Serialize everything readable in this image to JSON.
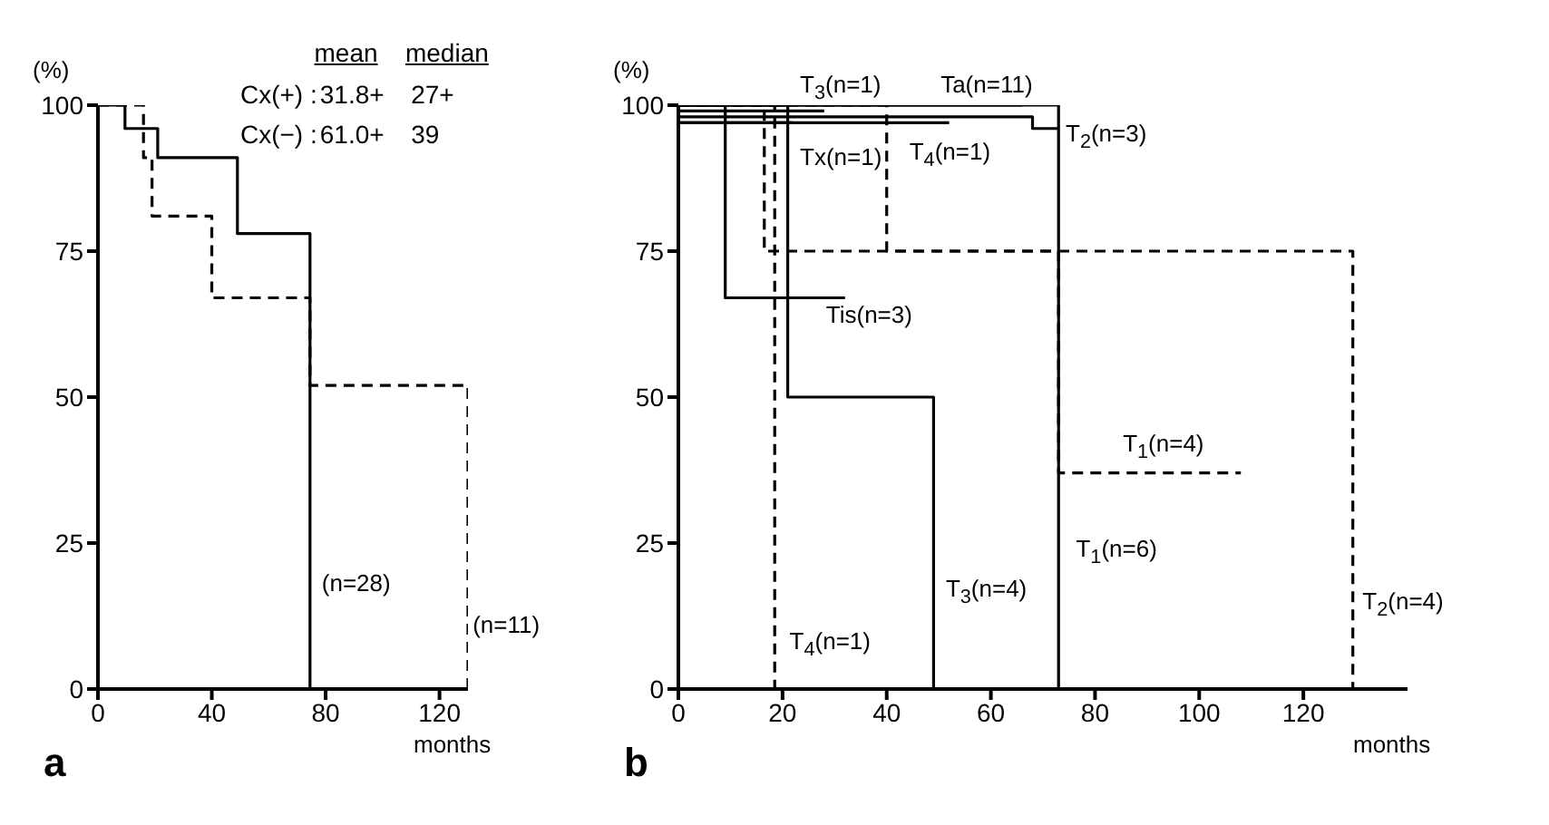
{
  "chart_data": [
    {
      "type": "step",
      "xlabel": "months",
      "ylabel": "(%)",
      "xlim": [
        0,
        130
      ],
      "xticks": [
        0,
        40,
        80,
        120
      ],
      "ylim": [
        0,
        100
      ],
      "yticks": [
        0,
        25,
        50,
        75,
        100
      ],
      "grid": false,
      "legend": false,
      "marker": "none",
      "annotations": [
        "a",
        "mean",
        "median",
        "Cx(+) :",
        "31.8+",
        "27+",
        "Cx(−) :",
        "61.0+",
        "39"
      ],
      "series": [
        {
          "name": "(n=28)",
          "color": "#000000",
          "line_style": "solid",
          "x": [
            0,
            9.5,
            21,
            49,
            74.5
          ],
          "values": [
            100,
            96,
            91,
            78,
            0
          ]
        },
        {
          "name": "(n=11)",
          "color": "#000000",
          "line_style": "dashed",
          "x": [
            0,
            16,
            19,
            40,
            74.5,
            130
          ],
          "values": [
            100,
            91,
            81,
            67,
            52,
            0
          ]
        }
      ]
    },
    {
      "type": "step",
      "xlabel": "months",
      "ylabel": "(%)",
      "xlim": [
        0,
        140
      ],
      "xticks": [
        0,
        20,
        40,
        60,
        80,
        100,
        120
      ],
      "ylim": [
        0,
        100
      ],
      "yticks": [
        0,
        25,
        50,
        75,
        100
      ],
      "grid": false,
      "legend": false,
      "marker": "none",
      "annotations": [
        "b"
      ],
      "series": [
        {
          "name": "T$_{3}$(n=1)",
          "color": "#000000",
          "line_style": "solid",
          "x": [
            0,
            28
          ],
          "values": [
            99,
            99
          ]
        },
        {
          "name": "Ta(n=11)",
          "color": "#000000",
          "line_style": "solid",
          "x": [
            0,
            66
          ],
          "values": [
            100,
            100
          ]
        },
        {
          "name": "T$_{2}$(n=3)",
          "color": "#000000",
          "line_style": "solid",
          "x": [
            0,
            68,
            73
          ],
          "values": [
            98,
            96,
            96
          ]
        },
        {
          "name": "T$_{4}$(n=1)",
          "color": "#000000",
          "line_style": "solid",
          "x": [
            0,
            52
          ],
          "values": [
            97,
            97
          ]
        },
        {
          "name": "Tx(n=1)",
          "color": "#000000",
          "line_style": "solid",
          "x": [
            0,
            22
          ],
          "values": [
            97,
            97
          ]
        },
        {
          "name": "Tis(n=3)",
          "color": "#000000",
          "line_style": "solid",
          "x": [
            0,
            9,
            32
          ],
          "values": [
            100,
            67,
            67
          ]
        },
        {
          "name": "T$_{3}$(n=4)",
          "color": "#000000",
          "line_style": "solid",
          "x": [
            0,
            21,
            49
          ],
          "values": [
            100,
            50,
            0
          ]
        },
        {
          "name": "T$_{1}$(n=6)",
          "color": "#000000",
          "line_style": "solid",
          "x": [
            0,
            73
          ],
          "values": [
            100,
            0
          ]
        },
        {
          "name": "T$_{4}$(n=1)",
          "color": "#000000",
          "line_style": "dashed",
          "x": [
            0,
            18.5
          ],
          "values": [
            100,
            0
          ]
        },
        {
          "name": "T$_{1}$(n=4)",
          "color": "#000000",
          "line_style": "dashed",
          "x": [
            0,
            40,
            73,
            108
          ],
          "values": [
            100,
            75,
            37,
            37
          ]
        },
        {
          "name": "T$_{2}$(n=4)",
          "color": "#000000",
          "line_style": "dashed",
          "x": [
            0,
            16.5,
            129.5
          ],
          "values": [
            100,
            75,
            0
          ]
        }
      ]
    }
  ]
}
